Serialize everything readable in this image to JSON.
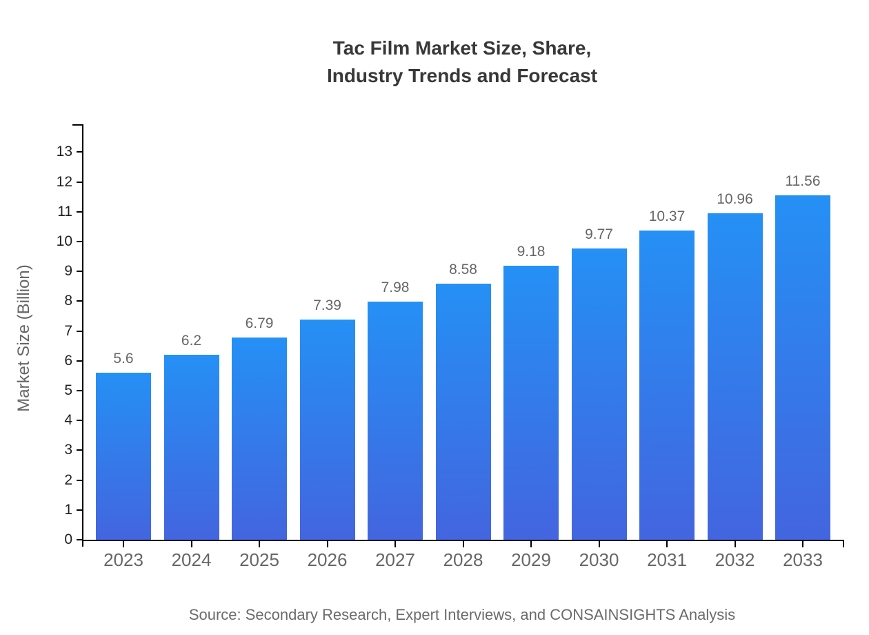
{
  "title": {
    "line1": "Tac Film Market Size, Share,",
    "line2": "Industry Trends and Forecast"
  },
  "source": "Source: Secondary Research, Expert Interviews, and CONSAINSIGHTS Analysis",
  "chart_data": {
    "type": "bar",
    "title": "Tac Film Market Size, Share, Industry Trends and Forecast",
    "categories": [
      "2023",
      "2024",
      "2025",
      "2026",
      "2027",
      "2028",
      "2029",
      "2030",
      "2031",
      "2032",
      "2033"
    ],
    "values": [
      5.6,
      6.2,
      6.79,
      7.39,
      7.98,
      8.58,
      9.18,
      9.77,
      10.37,
      10.96,
      11.56
    ],
    "value_labels": [
      "5.6",
      "6.2",
      "6.79",
      "7.39",
      "7.98",
      "8.58",
      "9.18",
      "9.77",
      "10.37",
      "10.96",
      "11.56"
    ],
    "xlabel": "",
    "ylabel": "Market Size (Billion)",
    "ylim": [
      0,
      13.9
    ],
    "yticks": [
      0,
      1,
      2,
      3,
      4,
      5,
      6,
      7,
      8,
      9,
      10,
      11,
      12,
      13
    ],
    "grid": false,
    "legend": "none",
    "colors": {
      "background": "#ffffff",
      "bar_top": "#2590f5",
      "bar_bottom": "#4365df",
      "axis": "#000000",
      "title_text": "#383838",
      "ytick_text": "#1f1f1f",
      "xtick_text": "#666666",
      "value_text": "#666666",
      "source_text": "#6b6b6b"
    }
  }
}
